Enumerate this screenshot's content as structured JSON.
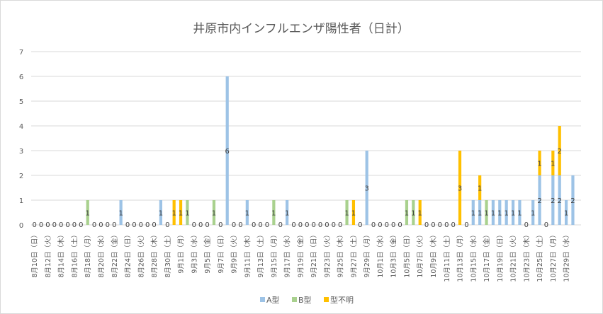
{
  "chart_data": {
    "type": "bar",
    "stacked": true,
    "title": "井原市内インフルエンザ陽性者（日計）",
    "xlabel": "",
    "ylabel": "",
    "ylim": [
      0,
      7
    ],
    "yticks": [
      "0",
      "1",
      "2",
      "3",
      "4",
      "5",
      "6",
      "7"
    ],
    "grid": true,
    "legend_position": "bottom",
    "day_count": 82,
    "tick_labels": [
      "8月10日（日）",
      "8月12日（火）",
      "8月14日（木）",
      "8月16日（土）",
      "8月18日（月）",
      "8月20日（水）",
      "8月22日（金）",
      "8月24日（日）",
      "8月26日（火）",
      "8月28日（木）",
      "8月30日（土）",
      "9月1日（月）",
      "9月3日（水）",
      "9月5日（金）",
      "9月7日（日）",
      "9月9日（火）",
      "9月11日（木）",
      "9月13日（土）",
      "9月15日（月）",
      "9月17日（水）",
      "9月19日（金）",
      "9月21日（日）",
      "9月23日（火）",
      "9月25日（木）",
      "9月27日（土）",
      "9月29日（月）",
      "10月1日（水）",
      "10月3日（金）",
      "10月5日（日）",
      "10月7日（火）",
      "10月9日（木）",
      "10月11日（土）",
      "10月13日（月）",
      "10月15日（水）",
      "10月17日（金）",
      "10月19日（日）",
      "10月21日（火）",
      "10月23日（木）",
      "10月25日（土）",
      "10月27日（月）",
      "10月29日（水）"
    ],
    "series": [
      {
        "name": "A型",
        "color": "#9DC3E6",
        "values": [
          0,
          0,
          0,
          0,
          0,
          0,
          0,
          0,
          0,
          0,
          0,
          0,
          0,
          1,
          0,
          0,
          0,
          0,
          0,
          1,
          0,
          0,
          0,
          0,
          0,
          0,
          0,
          0,
          0,
          6,
          0,
          0,
          1,
          0,
          0,
          0,
          0,
          0,
          1,
          0,
          0,
          0,
          0,
          0,
          0,
          0,
          0,
          0,
          0,
          0,
          3,
          0,
          0,
          0,
          0,
          0,
          0,
          0,
          0,
          0,
          0,
          0,
          0,
          0,
          0,
          0,
          1,
          1,
          0,
          1,
          1,
          1,
          1,
          1,
          0,
          1,
          2,
          0,
          2,
          2,
          1,
          2
        ]
      },
      {
        "name": "B型",
        "color": "#A9D18E",
        "values": [
          0,
          0,
          0,
          0,
          0,
          0,
          0,
          0,
          1,
          0,
          0,
          0,
          0,
          0,
          0,
          0,
          0,
          0,
          0,
          0,
          0,
          0,
          0,
          1,
          0,
          0,
          0,
          1,
          0,
          0,
          0,
          0,
          0,
          0,
          0,
          0,
          1,
          0,
          0,
          0,
          0,
          0,
          0,
          0,
          0,
          0,
          0,
          1,
          0,
          0,
          0,
          0,
          0,
          0,
          0,
          0,
          1,
          1,
          0,
          0,
          0,
          0,
          0,
          0,
          0,
          0,
          0,
          0,
          1,
          0,
          0,
          0,
          0,
          0,
          0,
          0,
          0,
          0,
          0,
          0,
          0,
          0
        ]
      },
      {
        "name": "型不明",
        "color": "#FFC000",
        "values": [
          0,
          0,
          0,
          0,
          0,
          0,
          0,
          0,
          0,
          0,
          0,
          0,
          0,
          0,
          0,
          0,
          0,
          0,
          0,
          0,
          0,
          1,
          1,
          0,
          0,
          0,
          0,
          0,
          0,
          0,
          0,
          0,
          0,
          0,
          0,
          0,
          0,
          0,
          0,
          0,
          0,
          0,
          0,
          0,
          0,
          0,
          0,
          0,
          1,
          0,
          0,
          0,
          0,
          0,
          0,
          0,
          0,
          0,
          1,
          0,
          0,
          0,
          0,
          0,
          3,
          0,
          0,
          1,
          0,
          0,
          0,
          0,
          0,
          0,
          0,
          0,
          1,
          0,
          1,
          2,
          0,
          0
        ]
      }
    ]
  }
}
